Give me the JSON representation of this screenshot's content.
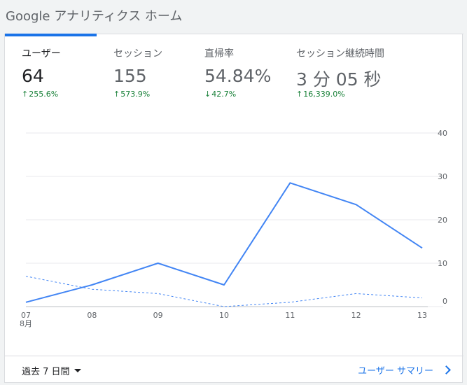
{
  "page": {
    "title": "Google アナリティクス ホーム"
  },
  "metrics": [
    {
      "label": "ユーザー",
      "value": "64",
      "change": "255.6%",
      "direction": "up",
      "active": true
    },
    {
      "label": "セッション",
      "value": "155",
      "change": "573.9%",
      "direction": "up",
      "active": false
    },
    {
      "label": "直帰率",
      "value": "54.84%",
      "change": "42.7%",
      "direction": "down",
      "active": false
    },
    {
      "label": "セッション継続時間",
      "value": "3 分 05 秒",
      "change": "16,339.0%",
      "direction": "up",
      "active": false
    }
  ],
  "colors": {
    "accent": "#1a73e8",
    "line": "#4285f4",
    "positive": "#188038",
    "grid": "#e8eaed"
  },
  "chart_data": {
    "type": "line",
    "x": [
      "07",
      "08",
      "09",
      "10",
      "11",
      "12",
      "13"
    ],
    "x_month_label": "8月",
    "series": [
      {
        "style": "solid",
        "values": [
          1,
          5,
          10,
          5,
          28.5,
          23.5,
          13.5
        ]
      },
      {
        "style": "dashed",
        "values": [
          7,
          4,
          3,
          0,
          1,
          3,
          2
        ]
      }
    ],
    "y_ticks": [
      0,
      10,
      20,
      30,
      40
    ],
    "ylim": [
      0,
      40
    ],
    "y_axis_position": "right",
    "grid": true
  },
  "footer": {
    "period_label": "過去 7 日間",
    "summary_link": "ユーザー サマリー"
  }
}
